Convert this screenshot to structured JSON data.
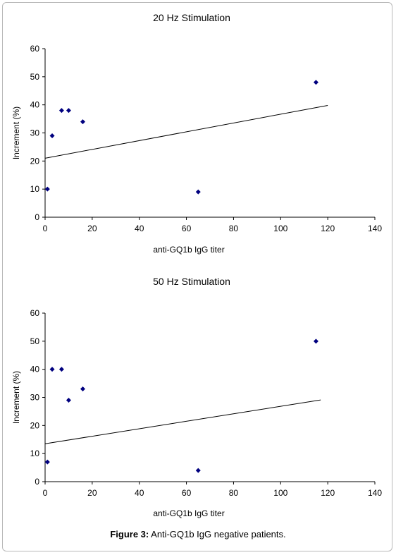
{
  "chart_data": [
    {
      "type": "scatter",
      "title": "20 Hz Stimulation",
      "xlabel": "anti-GQ1b IgG titer",
      "ylabel": "Increment (%)",
      "xlim": [
        0,
        140
      ],
      "ylim": [
        0,
        60
      ],
      "xticks": [
        "0",
        "20",
        "40",
        "60",
        "80",
        "100",
        "120",
        "140"
      ],
      "yticks": [
        "0",
        "10",
        "20",
        "30",
        "40",
        "50",
        "60"
      ],
      "grid": false,
      "legend": "none",
      "marker_color": "#00007f",
      "points": [
        {
          "x": 1,
          "y": 10
        },
        {
          "x": 3,
          "y": 29
        },
        {
          "x": 7,
          "y": 38
        },
        {
          "x": 10,
          "y": 38
        },
        {
          "x": 16,
          "y": 34
        },
        {
          "x": 65,
          "y": 9
        },
        {
          "x": 115,
          "y": 48
        }
      ],
      "trendline": {
        "x": [
          0,
          120
        ],
        "y": [
          21,
          39.8
        ]
      }
    },
    {
      "type": "scatter",
      "title": "50 Hz Stimulation",
      "xlabel": "anti-GQ1b IgG titer",
      "ylabel": "Increment (%)",
      "xlim": [
        0,
        140
      ],
      "ylim": [
        0,
        60
      ],
      "xticks": [
        "0",
        "20",
        "40",
        "60",
        "80",
        "100",
        "120",
        "140"
      ],
      "yticks": [
        "0",
        "10",
        "20",
        "30",
        "40",
        "50",
        "60"
      ],
      "grid": false,
      "legend": "none",
      "marker_color": "#00007f",
      "points": [
        {
          "x": 1,
          "y": 7
        },
        {
          "x": 3,
          "y": 40
        },
        {
          "x": 7,
          "y": 40
        },
        {
          "x": 10,
          "y": 29
        },
        {
          "x": 16,
          "y": 33
        },
        {
          "x": 65,
          "y": 4
        },
        {
          "x": 115,
          "y": 50
        }
      ],
      "trendline": {
        "x": [
          0,
          117
        ],
        "y": [
          13.5,
          29.1
        ]
      }
    }
  ],
  "caption": {
    "label": "Figure 3:",
    "text": " Anti-GQ1b IgG negative patients."
  }
}
